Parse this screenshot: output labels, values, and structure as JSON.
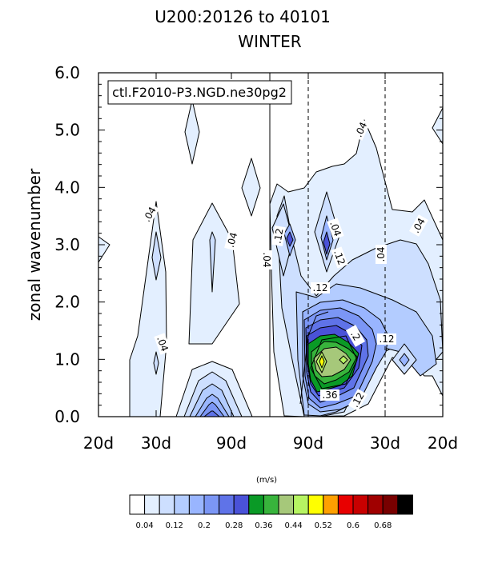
{
  "chart_data": {
    "type": "heatmap",
    "title": "U200:20126 to 40101",
    "subtitle": "WINTER",
    "ylabel": "zonal wavenumber",
    "annotation": "ctl.F2010-P3.NGD.ne30pg2",
    "x_tick_labels": [
      "20d",
      "30d",
      "90d",
      "90d",
      "30d",
      "20d"
    ],
    "y_ticks": [
      0.0,
      1.0,
      2.0,
      3.0,
      4.0,
      5.0,
      6.0
    ],
    "y_tick_labels": [
      "0.0",
      "1.0",
      "2.0",
      "3.0",
      "4.0",
      "5.0",
      "6.0"
    ],
    "ylim": [
      0,
      6
    ],
    "contour_labels": [
      ".04",
      ".04",
      ".04",
      ".04",
      ".04",
      ".04",
      ".04",
      ".04",
      ".12",
      ".12",
      ".12",
      ".12",
      ".2",
      ".12",
      ".36"
    ],
    "colorbar": {
      "unit": "(m/s)",
      "tick_labels": [
        "0.04",
        "0.12",
        "0.2",
        "0.28",
        "0.36",
        "0.44",
        "0.52",
        "0.6",
        "0.68"
      ],
      "colors": [
        "#ffffff",
        "#e3efff",
        "#cddfff",
        "#b3ccff",
        "#99b5ff",
        "#7b96f5",
        "#5f73e8",
        "#4a52d8",
        "#0a9a26",
        "#38b43c",
        "#a6c87a",
        "#b6f462",
        "#ffff00",
        "#ffa000",
        "#e80000",
        "#c80000",
        "#a00000",
        "#780000",
        "#000000"
      ]
    }
  }
}
